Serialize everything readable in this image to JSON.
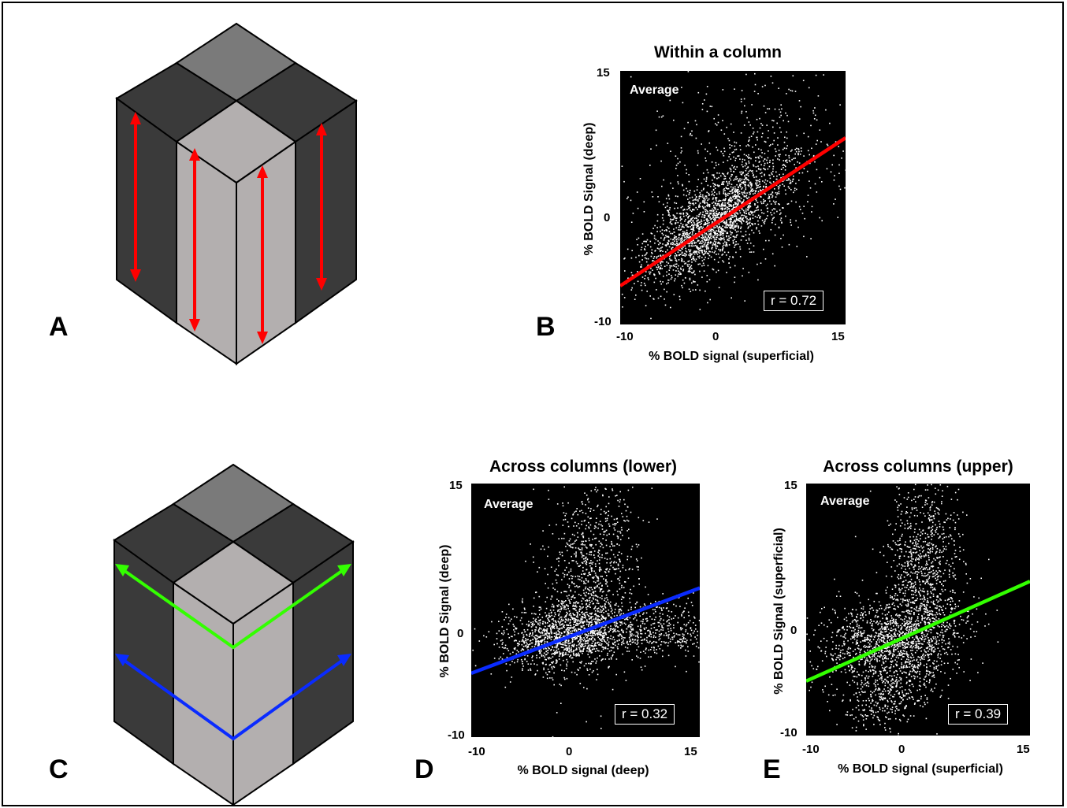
{
  "panels": {
    "A": {
      "label": "A"
    },
    "B": {
      "label": "B"
    },
    "C": {
      "label": "C"
    },
    "D": {
      "label": "D"
    },
    "E": {
      "label": "E"
    }
  },
  "colors": {
    "cube_dark": "#3a3a3a",
    "cube_mid": "#7a7a7a",
    "cube_light": "#b3afaf",
    "red": "#ff0000",
    "green": "#33ff00",
    "blue": "#0a2bff"
  },
  "chart_data": [
    {
      "type": "scatter",
      "title": "Within a column",
      "inset_label": "Average",
      "xlabel": "% BOLD signal (superficial)",
      "ylabel": "% BOLD Signal (deep)",
      "xlim": [
        -10,
        15
      ],
      "ylim": [
        -10,
        15
      ],
      "xticks": [
        -10,
        0,
        15
      ],
      "yticks": [
        -10,
        0,
        15
      ],
      "annotation": "r = 0.72",
      "fit_line": {
        "color": "#ff0000",
        "x": [
          -10,
          15
        ],
        "y": [
          -6.2,
          8.4
        ]
      }
    },
    {
      "type": "scatter",
      "title": "Across columns (lower)",
      "inset_label": "Average",
      "xlabel": "% BOLD signal (deep)",
      "ylabel": "% BOLD Signal (deep)",
      "xlim": [
        -10,
        15
      ],
      "ylim": [
        -10,
        15
      ],
      "xticks": [
        -10,
        0,
        15
      ],
      "yticks": [
        -10,
        0,
        15
      ],
      "annotation": "r = 0.32",
      "fit_line": {
        "color": "#0a2bff",
        "x": [
          -10,
          15
        ],
        "y": [
          -3.7,
          4.7
        ]
      }
    },
    {
      "type": "scatter",
      "title": "Across columns (upper)",
      "inset_label": "Average",
      "xlabel": "% BOLD signal (superficial)",
      "ylabel": "% BOLD Signal (superficial)",
      "xlim": [
        -10,
        15
      ],
      "ylim": [
        -10,
        15
      ],
      "xticks": [
        -10,
        0,
        15
      ],
      "yticks": [
        -10,
        0,
        15
      ],
      "annotation": "r = 0.39",
      "fit_line": {
        "color": "#33ff00",
        "x": [
          -10,
          15
        ],
        "y": [
          -4.6,
          5.3
        ]
      }
    }
  ]
}
